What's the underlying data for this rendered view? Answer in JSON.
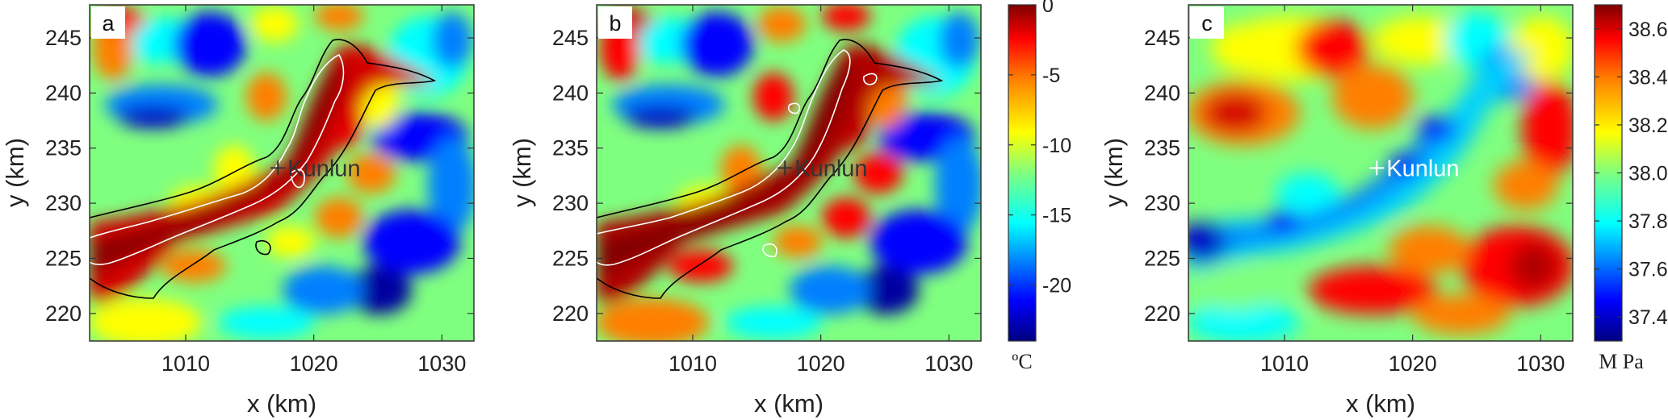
{
  "chart_data": [
    {
      "type": "heatmap",
      "panel_label": "a",
      "xlabel": "x (km)",
      "ylabel": "y (km)",
      "xlim": [
        1002.5,
        1032.5
      ],
      "ylim": [
        217.5,
        248
      ],
      "xticks": [
        1010,
        1020,
        1030
      ],
      "yticks": [
        220,
        225,
        230,
        235,
        240,
        245
      ],
      "colormap": "jet",
      "colorbar": "temperature",
      "contours": [
        "black",
        "white"
      ],
      "marker": {
        "label": "Kunlun",
        "x": 1017.2,
        "y": 233.2,
        "color": "#333333"
      }
    },
    {
      "type": "heatmap",
      "panel_label": "b",
      "xlabel": "x (km)",
      "ylabel": "y (km)",
      "xlim": [
        1002.5,
        1032.5
      ],
      "ylim": [
        217.5,
        248
      ],
      "xticks": [
        1010,
        1020,
        1030
      ],
      "yticks": [
        220,
        225,
        230,
        235,
        240,
        245
      ],
      "colormap": "jet",
      "colorbar": "temperature",
      "contours": [
        "black",
        "white"
      ],
      "marker": {
        "label": "Kunlun",
        "x": 1017.2,
        "y": 233.2,
        "color": "#333333"
      }
    },
    {
      "type": "heatmap",
      "panel_label": "c",
      "xlabel": "x (km)",
      "ylabel": "y (km)",
      "xlim": [
        1002.5,
        1032.5
      ],
      "ylim": [
        217.5,
        248
      ],
      "xticks": [
        1010,
        1020,
        1030
      ],
      "yticks": [
        220,
        225,
        230,
        235,
        240,
        245
      ],
      "colormap": "jet",
      "colorbar": "pressure",
      "contours": [],
      "marker": {
        "label": "Kunlun",
        "x": 1017.2,
        "y": 233.2,
        "color": "#ffffff"
      }
    }
  ],
  "colorbars": {
    "temperature": {
      "ticks": [
        "0",
        "-5",
        "-10",
        "-15",
        "-20"
      ],
      "tick_values": [
        0,
        -5,
        -10,
        -15,
        -20
      ],
      "range": [
        -24,
        0
      ],
      "unit": "ºC"
    },
    "pressure": {
      "ticks": [
        "38.6",
        "38.4",
        "38.2",
        "38.0",
        "37.8",
        "37.6",
        "37.4"
      ],
      "tick_values": [
        38.6,
        38.4,
        38.2,
        38.0,
        37.8,
        37.6,
        37.4
      ],
      "range": [
        37.3,
        38.7
      ],
      "unit": "M Pa"
    }
  },
  "colors": {
    "jet": [
      "#00007f",
      "#0000ff",
      "#007fff",
      "#00ffff",
      "#7fff7f",
      "#ffff00",
      "#ff7f00",
      "#ff0000",
      "#7f0000"
    ]
  }
}
